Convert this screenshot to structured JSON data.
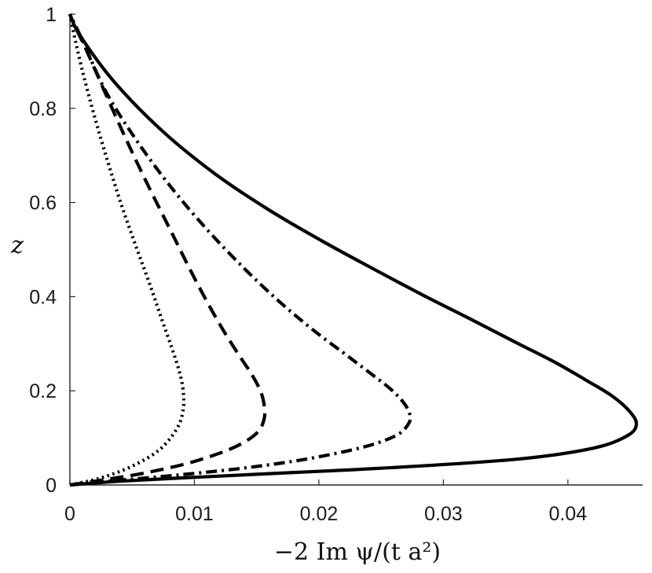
{
  "chart_data": {
    "type": "line",
    "title": "",
    "xlabel": "−2 Im ψ/(t a²)",
    "ylabel": "z",
    "xlim": [
      0,
      0.046
    ],
    "ylim": [
      0,
      1
    ],
    "xticks": [
      0,
      0.01,
      0.02,
      0.03,
      0.04
    ],
    "xtick_labels": [
      "0",
      "0.01",
      "0.02",
      "0.03",
      "0.04"
    ],
    "yticks": [
      0,
      0.2,
      0.4,
      0.6,
      0.8,
      1
    ],
    "ytick_labels": [
      "0",
      "0.2",
      "0.4",
      "0.6",
      "0.8",
      "1"
    ],
    "grid": false,
    "legend": "none",
    "series": [
      {
        "style": "solid",
        "x": [
          0,
          0.004,
          0.009,
          0.016,
          0.026,
          0.036,
          0.042,
          0.0448,
          0.0455,
          0.0449,
          0.0435,
          0.0415,
          0.039,
          0.0358,
          0.0322,
          0.0283,
          0.0243,
          0.0202,
          0.016,
          0.0117,
          0.0075,
          0.0036,
          0.0008,
          0
        ],
        "y": [
          0,
          0.008,
          0.015,
          0.024,
          0.037,
          0.055,
          0.078,
          0.105,
          0.13,
          0.158,
          0.19,
          0.222,
          0.26,
          0.303,
          0.352,
          0.404,
          0.46,
          0.519,
          0.584,
          0.66,
          0.75,
          0.855,
          0.955,
          1
        ]
      },
      {
        "style": "dashdot",
        "x": [
          0,
          0.004,
          0.009,
          0.014,
          0.019,
          0.0235,
          0.0262,
          0.0272,
          0.0273,
          0.0268,
          0.0257,
          0.024,
          0.0219,
          0.0195,
          0.0168,
          0.014,
          0.0111,
          0.0082,
          0.0054,
          0.0029,
          0.001,
          0
        ],
        "y": [
          0,
          0.01,
          0.022,
          0.036,
          0.055,
          0.08,
          0.105,
          0.13,
          0.15,
          0.175,
          0.205,
          0.24,
          0.282,
          0.33,
          0.39,
          0.46,
          0.54,
          0.63,
          0.73,
          0.835,
          0.945,
          1
        ]
      },
      {
        "style": "dashed",
        "x": [
          0,
          0.003,
          0.0065,
          0.01,
          0.0132,
          0.015,
          0.0156,
          0.0156,
          0.0153,
          0.0146,
          0.0136,
          0.0124,
          0.0111,
          0.0097,
          0.0081,
          0.0063,
          0.0045,
          0.0028,
          0.0013,
          0.0003,
          0
        ],
        "y": [
          0,
          0.012,
          0.028,
          0.05,
          0.08,
          0.11,
          0.14,
          0.17,
          0.2,
          0.235,
          0.275,
          0.325,
          0.385,
          0.455,
          0.54,
          0.635,
          0.735,
          0.835,
          0.925,
          0.98,
          1
        ]
      },
      {
        "style": "dotted",
        "x": [
          0,
          0.0025,
          0.005,
          0.0072,
          0.0086,
          0.0091,
          0.0091,
          0.0088,
          0.0082,
          0.0074,
          0.0065,
          0.0054,
          0.0042,
          0.003,
          0.0019,
          0.001,
          0.0003,
          0
        ],
        "y": [
          0,
          0.015,
          0.04,
          0.075,
          0.12,
          0.16,
          0.2,
          0.24,
          0.29,
          0.35,
          0.42,
          0.5,
          0.59,
          0.69,
          0.79,
          0.88,
          0.96,
          1
        ]
      }
    ]
  }
}
